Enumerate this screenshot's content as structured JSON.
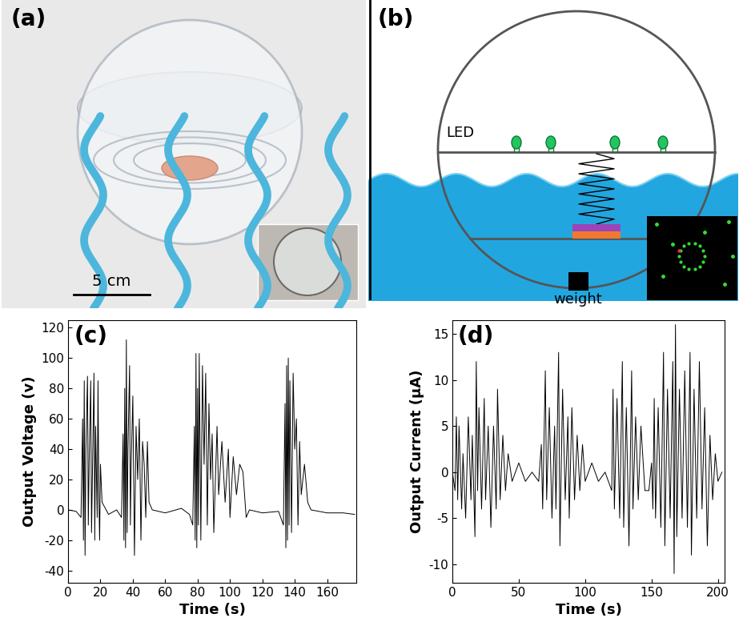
{
  "chart_data": [
    {
      "type": "line",
      "annotations": [
        "(c)"
      ],
      "x_label": "Time (s)",
      "y_label": "Output Voltage (v)",
      "color": "#000000",
      "xlim": [
        0,
        178
      ],
      "xticks": [
        0,
        20,
        40,
        60,
        80,
        100,
        120,
        140,
        160
      ],
      "ylim": [
        -48,
        125
      ],
      "yticks": [
        -40,
        -20,
        0,
        20,
        40,
        60,
        80,
        100,
        120
      ],
      "x": [
        0,
        5,
        8,
        9,
        9.5,
        10,
        10.5,
        11,
        12,
        12.5,
        13,
        14,
        14.5,
        15,
        16,
        16.5,
        17,
        18,
        18.5,
        19,
        19.5,
        20,
        21,
        25,
        30,
        33,
        34,
        34.5,
        35,
        35.5,
        36,
        36.5,
        37,
        38,
        38.5,
        39,
        40,
        41,
        42,
        43,
        44,
        45,
        46,
        47,
        48,
        49,
        50,
        52,
        60,
        70,
        75,
        77,
        78,
        78.5,
        79,
        79.5,
        80,
        80.5,
        81,
        82,
        83,
        84,
        85,
        86,
        87,
        88,
        89,
        90,
        92,
        93,
        95,
        97,
        99,
        100,
        102,
        104,
        106,
        108,
        110,
        112,
        120,
        130,
        133,
        134,
        134.5,
        135,
        135.5,
        136,
        136.5,
        137,
        138,
        139,
        140,
        141,
        142,
        143,
        144,
        146,
        148,
        150,
        160,
        170,
        177
      ],
      "values": [
        0,
        -1,
        -5,
        60,
        -20,
        85,
        -30,
        40,
        88,
        -10,
        30,
        85,
        -15,
        20,
        90,
        -20,
        55,
        -5,
        85,
        10,
        -20,
        30,
        5,
        -3,
        0,
        -5,
        50,
        -20,
        80,
        -25,
        112,
        -15,
        40,
        95,
        -10,
        30,
        75,
        -30,
        55,
        20,
        60,
        -20,
        45,
        30,
        -5,
        45,
        5,
        0,
        -2,
        1,
        -3,
        -10,
        55,
        -20,
        103,
        -25,
        80,
        -10,
        103,
        -20,
        95,
        30,
        90,
        -10,
        70,
        20,
        50,
        -15,
        55,
        10,
        45,
        5,
        40,
        -5,
        35,
        10,
        30,
        25,
        -5,
        0,
        -2,
        -1,
        -10,
        70,
        -25,
        95,
        -20,
        100,
        -10,
        85,
        -15,
        90,
        40,
        60,
        -10,
        45,
        10,
        30,
        5,
        0,
        -2,
        -2,
        -3
      ]
    },
    {
      "type": "line",
      "annotations": [
        "(d)"
      ],
      "x_label": "Time (s)",
      "y_label": "Output Current (μA)",
      "color": "#000000",
      "xlim": [
        0,
        205
      ],
      "xticks": [
        0,
        50,
        100,
        150,
        200
      ],
      "ylim": [
        -12,
        16.5
      ],
      "yticks": [
        -10,
        -5,
        0,
        5,
        10,
        15
      ],
      "x": [
        0,
        2,
        3,
        4,
        5,
        7,
        8,
        10,
        12,
        14,
        15,
        17,
        18,
        19,
        20,
        22,
        24,
        25,
        27,
        29,
        31,
        33,
        34,
        36,
        38,
        40,
        42,
        45,
        50,
        55,
        60,
        65,
        67,
        68,
        70,
        71,
        73,
        75,
        77,
        78,
        80,
        81,
        83,
        85,
        87,
        88,
        90,
        92,
        94,
        96,
        98,
        100,
        105,
        110,
        115,
        120,
        121,
        122,
        124,
        126,
        128,
        129,
        131,
        133,
        135,
        136,
        138,
        140,
        142,
        145,
        148,
        150,
        151,
        152,
        153,
        155,
        157,
        159,
        160,
        162,
        164,
        166,
        167,
        168,
        169,
        171,
        173,
        175,
        177,
        179,
        180,
        182,
        184,
        186,
        188,
        190,
        192,
        194,
        196,
        198,
        200,
        203
      ],
      "values": [
        0,
        -2,
        6,
        -3,
        5,
        -4,
        2,
        -5,
        6,
        -3,
        4,
        -7,
        12,
        -2,
        7,
        -4,
        8,
        -3,
        5,
        -6,
        5,
        -4,
        9,
        -3,
        4,
        -2,
        2,
        -1,
        1,
        -1,
        0,
        -1,
        3,
        -4,
        11,
        -3,
        7,
        -5,
        5,
        -4,
        13,
        -8,
        9,
        -3,
        6,
        -5,
        7,
        -3,
        4,
        -2,
        3,
        -1,
        1,
        -1,
        0,
        -2,
        9,
        -4,
        8,
        -5,
        12,
        -6,
        7,
        -8,
        11,
        -4,
        6,
        -3,
        5,
        -2,
        -2,
        1,
        -4,
        8,
        -5,
        7,
        -6,
        13,
        -8,
        9,
        -5,
        12,
        -11,
        16,
        -7,
        9,
        -5,
        11,
        -6,
        13,
        -9,
        9,
        -5,
        12,
        -4,
        7,
        -8,
        4,
        -3,
        2,
        -1,
        0
      ]
    }
  ],
  "photo": {
    "label": "(a)",
    "scale_bar": "5 cm"
  },
  "diagram": {
    "label": "(b)",
    "led_label": "LED",
    "weight_label": "weight"
  }
}
